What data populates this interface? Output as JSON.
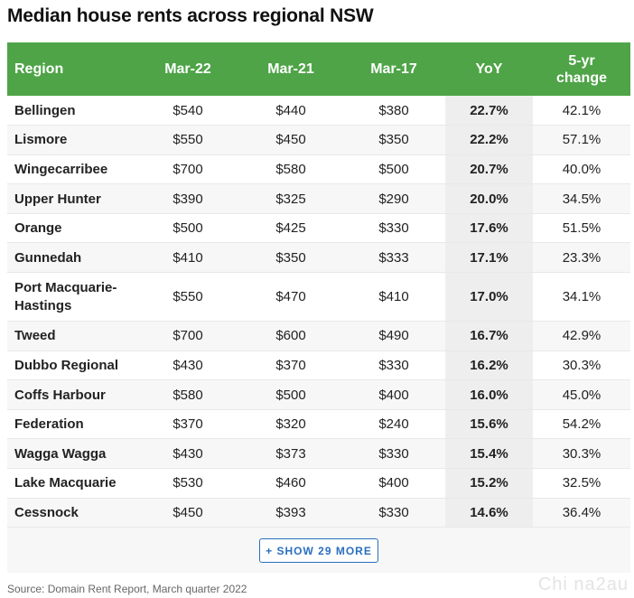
{
  "title": "Median house rents across regional NSW",
  "chart_data": {
    "type": "table",
    "columns": [
      "Region",
      "Mar-22",
      "Mar-21",
      "Mar-17",
      "YoY",
      "5-yr change"
    ],
    "rows": [
      {
        "region": "Bellingen",
        "mar22": "$540",
        "mar21": "$440",
        "mar17": "$380",
        "yoy": "22.7%",
        "five_yr": "42.1%"
      },
      {
        "region": "Lismore",
        "mar22": "$550",
        "mar21": "$450",
        "mar17": "$350",
        "yoy": "22.2%",
        "five_yr": "57.1%"
      },
      {
        "region": "Wingecarribee",
        "mar22": "$700",
        "mar21": "$580",
        "mar17": "$500",
        "yoy": "20.7%",
        "five_yr": "40.0%"
      },
      {
        "region": "Upper Hunter",
        "mar22": "$390",
        "mar21": "$325",
        "mar17": "$290",
        "yoy": "20.0%",
        "five_yr": "34.5%"
      },
      {
        "region": "Orange",
        "mar22": "$500",
        "mar21": "$425",
        "mar17": "$330",
        "yoy": "17.6%",
        "five_yr": "51.5%"
      },
      {
        "region": "Gunnedah",
        "mar22": "$410",
        "mar21": "$350",
        "mar17": "$333",
        "yoy": "17.1%",
        "five_yr": "23.3%"
      },
      {
        "region": "Port Macquarie-Hastings",
        "mar22": "$550",
        "mar21": "$470",
        "mar17": "$410",
        "yoy": "17.0%",
        "five_yr": "34.1%"
      },
      {
        "region": "Tweed",
        "mar22": "$700",
        "mar21": "$600",
        "mar17": "$490",
        "yoy": "16.7%",
        "five_yr": "42.9%"
      },
      {
        "region": "Dubbo Regional",
        "mar22": "$430",
        "mar21": "$370",
        "mar17": "$330",
        "yoy": "16.2%",
        "five_yr": "30.3%"
      },
      {
        "region": "Coffs Harbour",
        "mar22": "$580",
        "mar21": "$500",
        "mar17": "$400",
        "yoy": "16.0%",
        "five_yr": "45.0%"
      },
      {
        "region": "Federation",
        "mar22": "$370",
        "mar21": "$320",
        "mar17": "$240",
        "yoy": "15.6%",
        "five_yr": "54.2%"
      },
      {
        "region": "Wagga Wagga",
        "mar22": "$430",
        "mar21": "$373",
        "mar17": "$330",
        "yoy": "15.4%",
        "five_yr": "30.3%"
      },
      {
        "region": "Lake Macquarie",
        "mar22": "$530",
        "mar21": "$460",
        "mar17": "$400",
        "yoy": "15.2%",
        "five_yr": "32.5%"
      },
      {
        "region": "Cessnock",
        "mar22": "$450",
        "mar21": "$393",
        "mar17": "$330",
        "yoy": "14.6%",
        "five_yr": "36.4%"
      }
    ]
  },
  "show_more_label": "+ SHOW 29 MORE",
  "source": "Source: Domain Rent Report, March quarter 2022",
  "watermark": "Chi na2au",
  "colors": {
    "header_bg": "#4ea447",
    "button": "#2a6fbf"
  }
}
